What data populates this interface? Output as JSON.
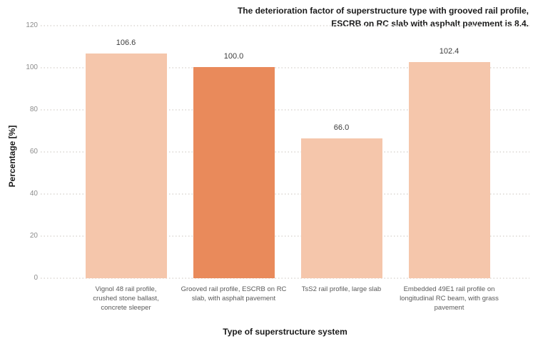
{
  "title_lines": [
    "The deterioration factor of superstructure type with grooved rail profile,",
    "ESCRB on RC slab with asphalt pavement is 8.4."
  ],
  "chart_data": {
    "type": "bar",
    "title": "The deterioration factor of superstructure type with grooved rail profile, ESCRB on RC slab with asphalt pavement is 8.4.",
    "xlabel": "Type of superstructure system",
    "ylabel": "Percentage [%]",
    "ylim": [
      0,
      120
    ],
    "yticks": [
      0,
      20,
      40,
      60,
      80,
      100,
      120
    ],
    "grid": "horizontal-dotted",
    "legend": "none",
    "categories": [
      "Vignol 48 rail profile, crushed stone ballast, concrete sleeper",
      "Grooved rail profile, ESCRB on RC slab, with asphalt pavement",
      "TsS2 rail profile, large slab",
      "Embedded 49E1 rail profile on longitudinal RC beam, with grass pavement"
    ],
    "category_lines": [
      [
        "Vignol 48 rail profile,",
        "crushed stone ballast,",
        "concrete sleeper"
      ],
      [
        "Grooved rail profile, ESCRB on RC",
        "slab, with asphalt pavement"
      ],
      [
        "TsS2 rail profile, large slab"
      ],
      [
        "Embedded 49E1 rail profile on",
        "longitudinal RC beam, with grass",
        "pavement"
      ]
    ],
    "values": [
      106.6,
      100.0,
      66.0,
      102.4
    ],
    "value_labels": [
      "106.6",
      "100.0",
      "66.0",
      "102.4"
    ],
    "highlight_index": 1,
    "bar_color": "#f5c6ab",
    "highlight_color": "#e98a5b",
    "gridline_color": "#e4e1de",
    "tick_label_color": "#8c8c8c",
    "category_label_color": "#5a5a5a",
    "value_label_color": "#3c3c3c"
  }
}
